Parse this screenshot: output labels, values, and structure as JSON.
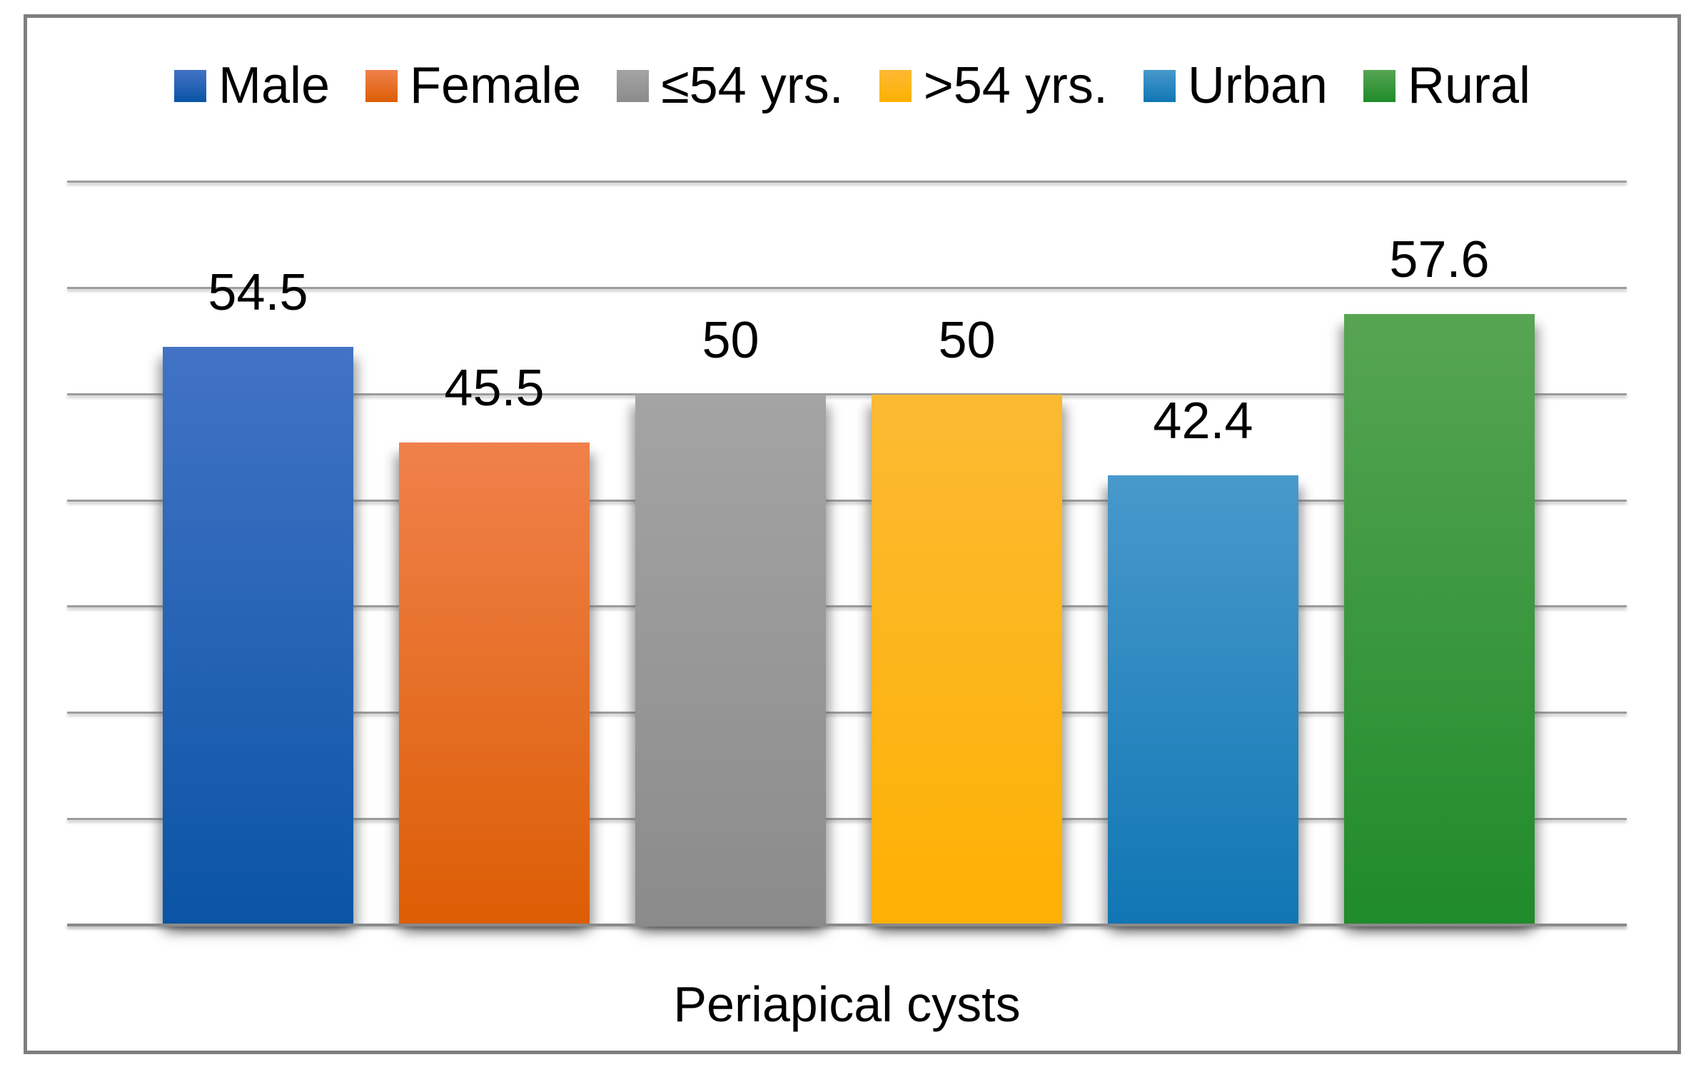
{
  "figure": {
    "background_color": "#FFFFFF",
    "frame_border_color": "#7E7E7E"
  },
  "chart_data": {
    "type": "bar",
    "title": "",
    "xlabel": "Periapical cysts",
    "ylabel": "",
    "ylim": [
      0,
      70
    ],
    "gridline_step": 10,
    "grid": true,
    "legend_position": "top",
    "gridline_color": "#9C9C9C",
    "axis_line_color": "#8A8A8A",
    "value_label_color": "#000000",
    "categories": [
      "Male",
      "Female",
      "≤54 yrs.",
      ">54 yrs.",
      "Urban",
      "Rural"
    ],
    "series": [
      {
        "name": "Male",
        "value": 54.5,
        "label": "54.5",
        "color_top": "#4273C5",
        "color_bottom": "#0A54A5"
      },
      {
        "name": "Female",
        "value": 45.5,
        "label": "45.5",
        "color_top": "#F0814B",
        "color_bottom": "#DC5E04"
      },
      {
        "name": "≤54 yrs.",
        "value": 50,
        "label": "50",
        "color_top": "#A4A4A4",
        "color_bottom": "#8B8B8B"
      },
      {
        "name": ">54 yrs.",
        "value": 50,
        "label": "50",
        "color_top": "#FBBA33",
        "color_bottom": "#FEB103"
      },
      {
        "name": "Urban",
        "value": 42.4,
        "label": "42.4",
        "color_top": "#4899CB",
        "color_bottom": "#1076B4"
      },
      {
        "name": "Rural",
        "value": 57.6,
        "label": "57.6",
        "color_top": "#57A553",
        "color_bottom": "#1F8B2A"
      }
    ]
  }
}
